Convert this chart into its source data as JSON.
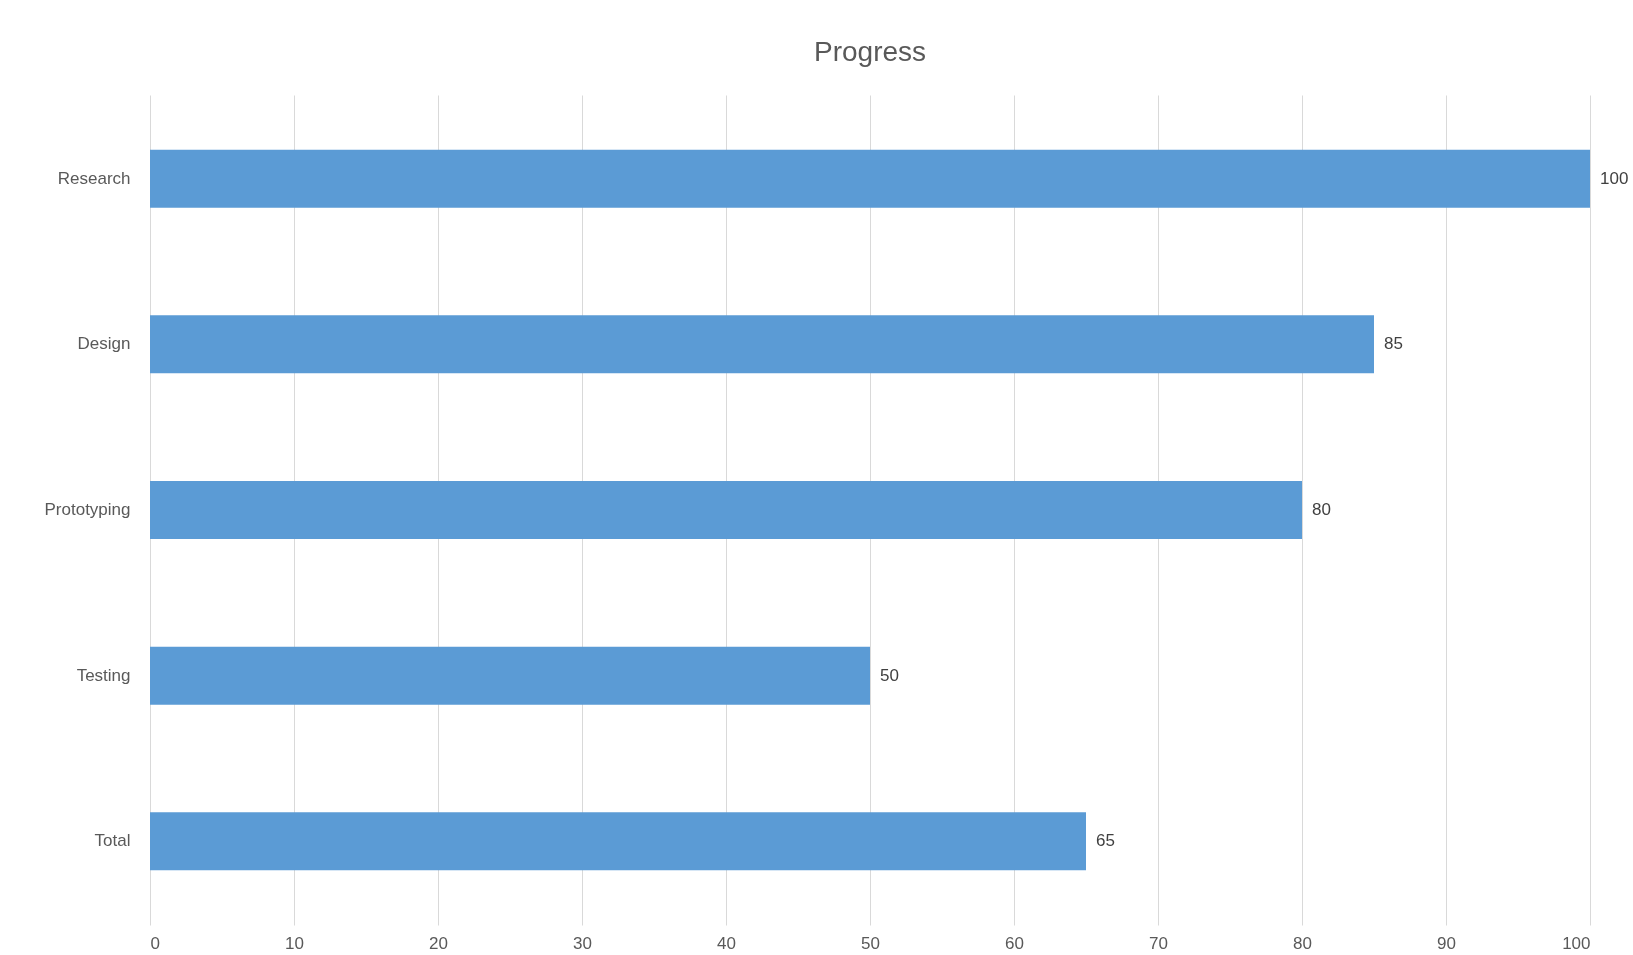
{
  "chart_data": {
    "type": "bar",
    "orientation": "horizontal",
    "title": "Progress",
    "categories": [
      "Research",
      "Design",
      "Prototyping",
      "Testing",
      "Total"
    ],
    "values": [
      100,
      85,
      80,
      50,
      65
    ],
    "color": "#5b9bd5",
    "xlim": [
      0,
      100
    ],
    "xticks": [
      0,
      10,
      20,
      30,
      40,
      50,
      60,
      70,
      80,
      90,
      100
    ],
    "grid": "x",
    "data_labels": true
  }
}
